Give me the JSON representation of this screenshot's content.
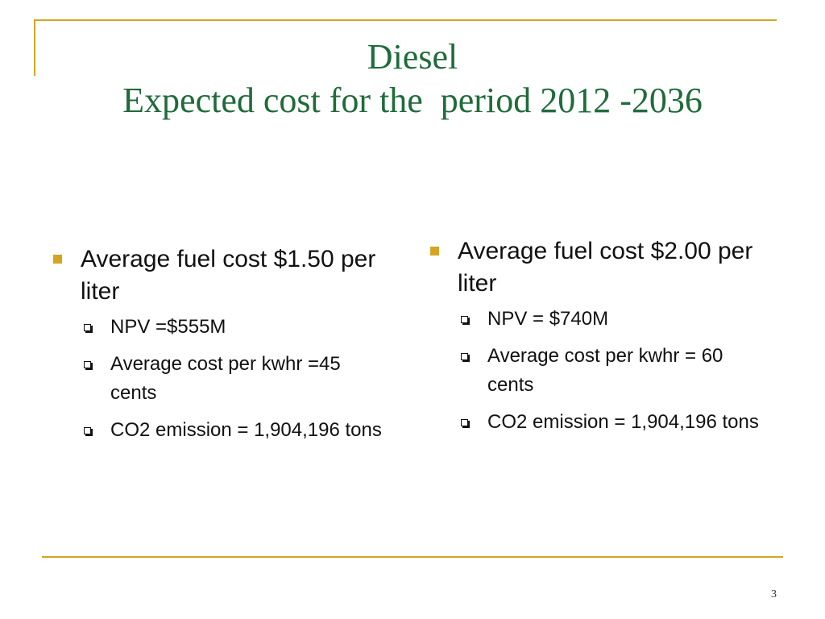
{
  "title": {
    "line1": "Diesel",
    "line2": "Expected cost for the  period 2012 -2036"
  },
  "left": {
    "heading": "Average fuel cost $1.50 per liter",
    "items": [
      "NPV =$555M",
      "Average cost per kwhr =45 cents",
      "CO2 emission = 1,904,196 tons"
    ]
  },
  "right": {
    "heading": "Average fuel cost $2.00 per liter",
    "items": [
      "NPV = $740M",
      "Average cost per kwhr = 60 cents",
      "CO2 emission = 1,904,196 tons"
    ]
  },
  "page_number": "3",
  "colors": {
    "accent": "#d4a521",
    "title": "#1f6b3a",
    "text": "#111111"
  },
  "icons": {
    "level1": "filled-square-bullet",
    "level2": "hollow-shadowed-square-bullet"
  }
}
